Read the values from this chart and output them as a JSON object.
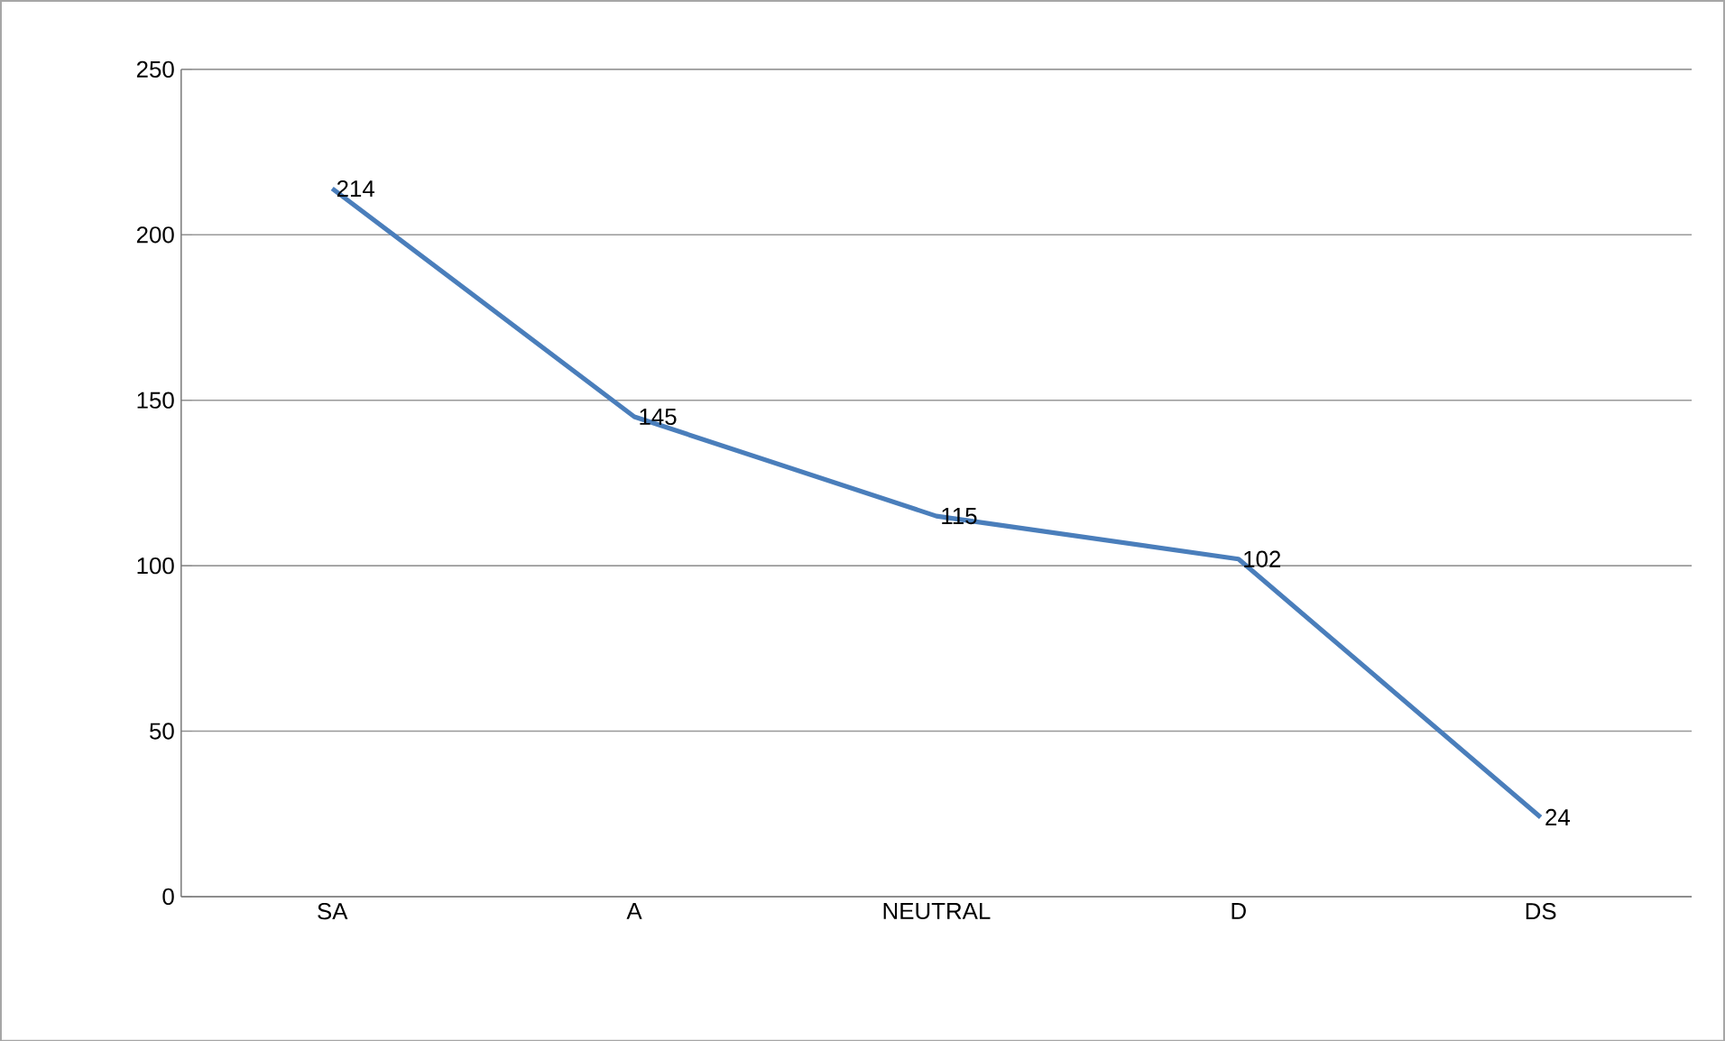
{
  "chart_data": {
    "type": "line",
    "categories": [
      "SA",
      "A",
      "NEUTRAL",
      "D",
      "DS"
    ],
    "series": [
      {
        "color": "#4a7ebb",
        "values": [
          214,
          145,
          115,
          102,
          24
        ]
      }
    ],
    "ylim": [
      0,
      250
    ],
    "yticks": [
      0,
      50,
      100,
      150,
      200,
      250
    ],
    "grid": "y",
    "data_labels": true,
    "marker": "none",
    "line_style": "solid"
  }
}
